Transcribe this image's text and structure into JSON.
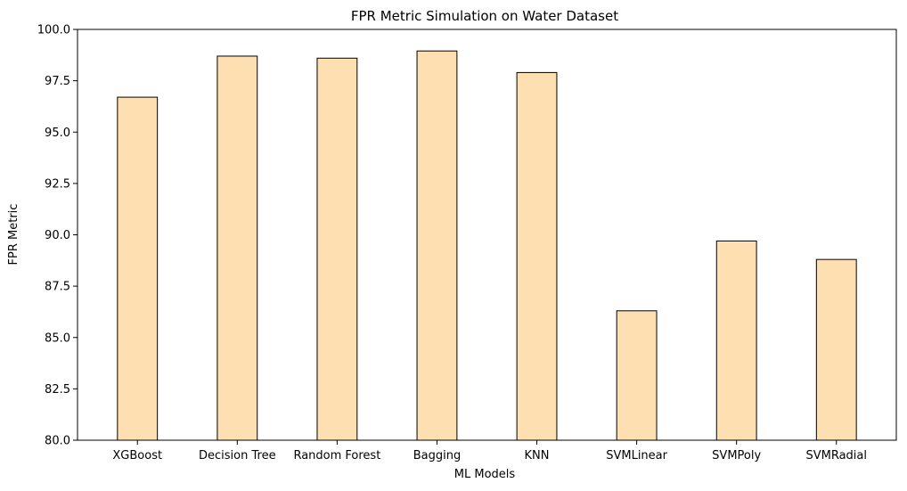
{
  "chart_data": {
    "type": "bar",
    "title": "FPR Metric Simulation on Water Dataset",
    "xlabel": "ML Models",
    "ylabel": "FPR Metric",
    "categories": [
      "XGBoost",
      "Decision Tree",
      "Random Forest",
      "Bagging",
      "KNN",
      "SVMLinear",
      "SVMPoly",
      "SVMRadial"
    ],
    "values": [
      96.7,
      98.7,
      98.6,
      98.95,
      97.9,
      86.3,
      89.7,
      88.8
    ],
    "ylim": [
      80,
      100
    ],
    "yticks": [
      "80.0",
      "82.5",
      "85.0",
      "87.5",
      "90.0",
      "92.5",
      "95.0",
      "97.5",
      "100.0"
    ],
    "grid": false,
    "legend": "none",
    "colors": {
      "bar_fill": "#fddfb1",
      "bar_edge": "#000000",
      "axis": "#000000"
    }
  }
}
